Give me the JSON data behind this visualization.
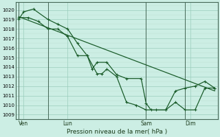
{
  "xlabel": "Pression niveau de la mer( hPa )",
  "bg_color": "#cceee4",
  "grid_color_major": "#99ccbb",
  "grid_color_minor": "#bbddcc",
  "line_color": "#1a5c2a",
  "ylim": [
    1008.5,
    1020.8
  ],
  "yticks": [
    1009,
    1010,
    1011,
    1012,
    1013,
    1014,
    1015,
    1016,
    1017,
    1018,
    1019,
    1020
  ],
  "xlim": [
    -0.3,
    20.3
  ],
  "day_positions": [
    0.5,
    5,
    13,
    17.5
  ],
  "day_labels": [
    "Ven",
    "Lun",
    "Sam",
    "Dim"
  ],
  "vline_positions": [
    0,
    3,
    13,
    17
  ],
  "trend_line": {
    "x": [
      0,
      20
    ],
    "y": [
      1019.3,
      1011.5
    ]
  },
  "series1": {
    "x": [
      0,
      0.5,
      1.5,
      3,
      4,
      5,
      6,
      7,
      7.5,
      8,
      9,
      10,
      11,
      12.5,
      13,
      13.5,
      15,
      16,
      17,
      18,
      19,
      20
    ],
    "y": [
      1019.0,
      1019.8,
      1020.1,
      1019.0,
      1018.5,
      1018.0,
      1016.5,
      1015.2,
      1013.8,
      1014.5,
      1014.5,
      1013.2,
      1012.8,
      1012.8,
      1010.2,
      1009.5,
      1009.5,
      1010.3,
      1009.5,
      1009.5,
      1011.8,
      1011.8
    ]
  },
  "series2": {
    "x": [
      0,
      1,
      2,
      3,
      4,
      5,
      6,
      7,
      8,
      8.5,
      9,
      10,
      11,
      12,
      13,
      14,
      15,
      16,
      17,
      18,
      19,
      20
    ],
    "y": [
      1019.2,
      1019.2,
      1018.8,
      1018.0,
      1018.0,
      1017.2,
      1015.2,
      1015.2,
      1013.3,
      1013.3,
      1013.8,
      1013.0,
      1010.3,
      1010.0,
      1009.5,
      1009.5,
      1009.5,
      1011.5,
      1011.8,
      1012.0,
      1012.5,
      1011.8
    ]
  }
}
